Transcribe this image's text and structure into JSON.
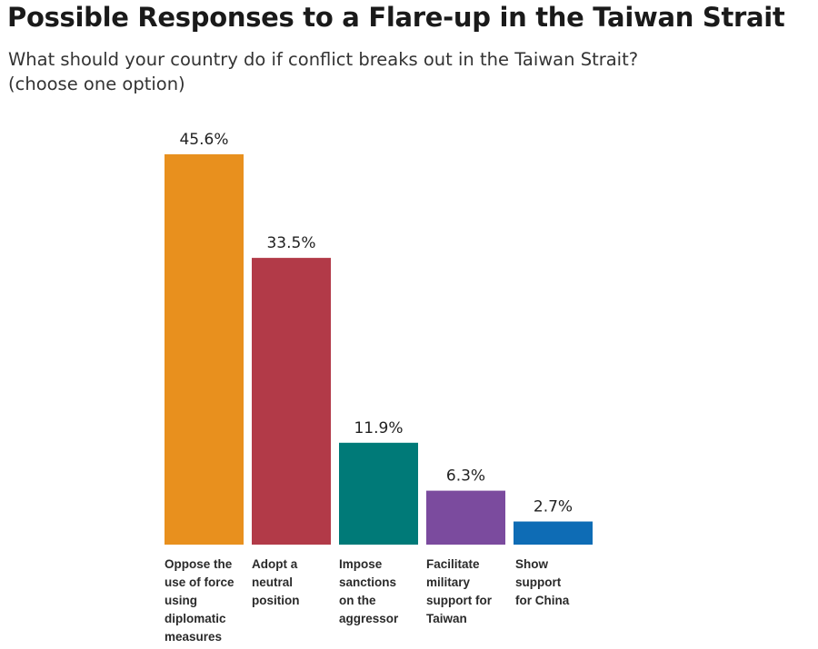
{
  "chart_data": {
    "type": "bar",
    "title": "Possible Responses to a Flare-up in the Taiwan Strait",
    "subtitle_line1": "What should your country do if conflict breaks out in the Taiwan Strait?",
    "subtitle_line2": "(choose one option)",
    "categories": [
      "Oppose the use of force using diplomatic measures",
      "Adopt a neutral position",
      "Impose sanctions on the aggressor",
      "Facilitate military support for Taiwan",
      "Show support for China"
    ],
    "values": [
      45.6,
      33.5,
      11.9,
      6.3,
      2.7
    ],
    "value_labels": [
      "45.6%",
      "33.5%",
      "11.9%",
      "6.3%",
      "2.7%"
    ],
    "colors": [
      "#E8901E",
      "#B23A48",
      "#007A78",
      "#7B4B9E",
      "#0E6CB5"
    ],
    "ylim": [
      0,
      45.6
    ],
    "grid": false,
    "legend": "none"
  }
}
